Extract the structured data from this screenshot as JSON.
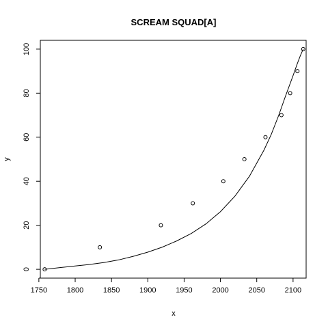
{
  "chart_data": {
    "type": "scatter",
    "title": "SCREAM SQUAD[A]",
    "xlabel": "x",
    "ylabel": "y",
    "xlim": [
      1752,
      2118
    ],
    "ylim": [
      -4,
      104
    ],
    "x_ticks": [
      1750,
      1800,
      1850,
      1900,
      1950,
      2000,
      2050,
      2100
    ],
    "y_ticks": [
      0,
      20,
      40,
      60,
      80,
      100
    ],
    "points": {
      "x": [
        1758,
        1834,
        1918,
        1962,
        2004,
        2033,
        2062,
        2084,
        2096,
        2106,
        2114
      ],
      "y": [
        0,
        10,
        20,
        30,
        40,
        50,
        60,
        70,
        80,
        90,
        100
      ]
    },
    "fit_curve": {
      "x": [
        1758,
        1780,
        1800,
        1820,
        1840,
        1860,
        1880,
        1900,
        1920,
        1940,
        1960,
        1980,
        2000,
        2020,
        2040,
        2060,
        2070,
        2080,
        2090,
        2100,
        2106,
        2110,
        2114
      ],
      "y": [
        0,
        0.8,
        1.5,
        2.2,
        3.1,
        4.3,
        5.9,
        7.8,
        10.1,
        12.9,
        16.3,
        20.6,
        26.2,
        33.2,
        42.3,
        54.2,
        61.3,
        69.7,
        79.0,
        88.0,
        93.5,
        97.0,
        100
      ]
    },
    "grid": false,
    "legend": "none"
  }
}
